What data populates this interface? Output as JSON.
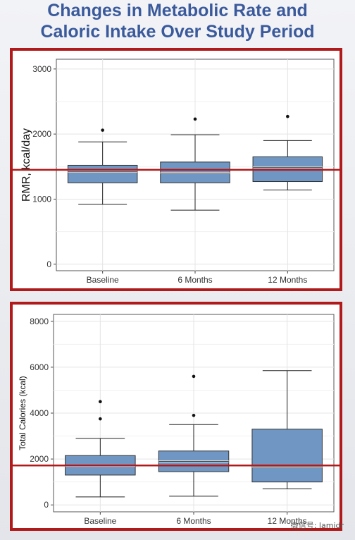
{
  "page": {
    "title_line1": "Changes in Metabolic Rate and",
    "title_line2": "Caloric Intake Over Study Period",
    "watermark": "微信号: lamidr"
  },
  "colors": {
    "box_fill": "#7096c3",
    "ref_line": "#b01a1a",
    "border": "#b01a1a",
    "title": "#3a5a9c"
  },
  "chart_data": [
    {
      "type": "box",
      "ylabel": "RMR, kcal/day",
      "categories": [
        "Baseline",
        "6 Months",
        "12 Months"
      ],
      "ylim": [
        -100,
        3150
      ],
      "yticks": [
        0,
        1000,
        2000,
        3000
      ],
      "grid": true,
      "reference_line": 1450,
      "boxes": [
        {
          "whisker_low": 920,
          "q1": 1250,
          "median": 1420,
          "q3": 1520,
          "whisker_high": 1880,
          "outliers": [
            2060
          ]
        },
        {
          "whisker_low": 830,
          "q1": 1250,
          "median": 1400,
          "q3": 1570,
          "whisker_high": 1990,
          "outliers": [
            2230
          ]
        },
        {
          "whisker_low": 1140,
          "q1": 1270,
          "median": 1490,
          "q3": 1650,
          "whisker_high": 1900,
          "outliers": [
            2270
          ]
        }
      ]
    },
    {
      "type": "box",
      "ylabel": "Total Calories (kcal)",
      "categories": [
        "Baseline",
        "6 Months",
        "12 Months"
      ],
      "ylim": [
        -300,
        8300
      ],
      "yticks": [
        0,
        2000,
        4000,
        6000,
        8000
      ],
      "grid": true,
      "reference_line": 1720,
      "boxes": [
        {
          "whisker_low": 350,
          "q1": 1300,
          "median": 1700,
          "q3": 2150,
          "whisker_high": 2900,
          "outliers": [
            3750,
            4500
          ]
        },
        {
          "whisker_low": 380,
          "q1": 1450,
          "median": 1900,
          "q3": 2350,
          "whisker_high": 3500,
          "outliers": [
            3900,
            5600
          ]
        },
        {
          "whisker_low": 700,
          "q1": 1000,
          "median": 1650,
          "q3": 3300,
          "whisker_high": 5850,
          "outliers": []
        }
      ]
    }
  ]
}
